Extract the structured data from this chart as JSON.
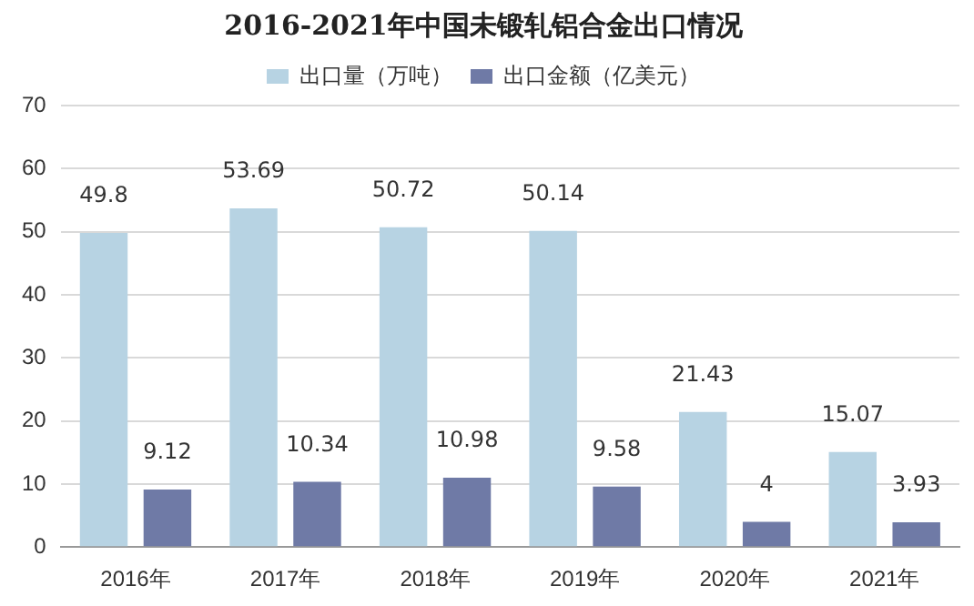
{
  "chart_data": {
    "type": "bar",
    "title": "2016-2021年中国未锻轧铝合金出口情况",
    "categories": [
      "2016年",
      "2017年",
      "2018年",
      "2019年",
      "2020年",
      "2021年"
    ],
    "series": [
      {
        "name": "出口量（万吨）",
        "color": "#b7d3e3",
        "values": [
          49.8,
          53.69,
          50.72,
          50.14,
          21.43,
          15.07
        ]
      },
      {
        "name": "出口金额（亿美元）",
        "color": "#6f7aa6",
        "values": [
          9.12,
          10.34,
          10.98,
          9.58,
          4,
          3.93
        ]
      }
    ],
    "ylim": [
      0,
      70
    ],
    "yticks": [
      0,
      10,
      20,
      30,
      40,
      50,
      60,
      70
    ],
    "grid": "y",
    "legend": "top",
    "data_labels": true
  }
}
